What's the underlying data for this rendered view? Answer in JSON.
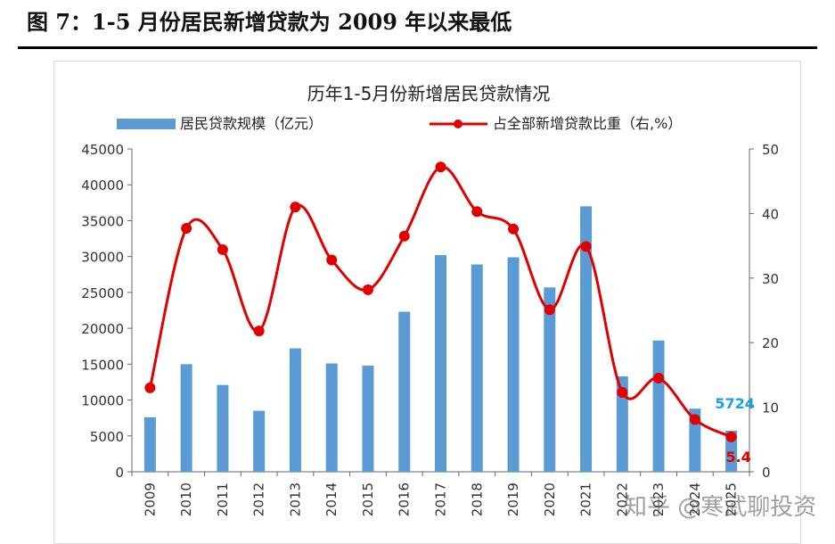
{
  "figure_title": "图 7：1-5 月份居民新增贷款为 2009 年以来最低",
  "watermark": "知乎 @寒武聊投资",
  "chart_data": {
    "type": "bar",
    "title": "历年1-5月份新增居民贷款情况",
    "categories": [
      "2009",
      "2010",
      "2011",
      "2012",
      "2013",
      "2014",
      "2015",
      "2016",
      "2017",
      "2018",
      "2019",
      "2020",
      "2021",
      "2022",
      "2023",
      "2024",
      "2025"
    ],
    "series": [
      {
        "name": "居民贷款规模（亿元）",
        "type": "bar",
        "axis": "left",
        "color": "#5b9bd5",
        "values": [
          7600,
          15000,
          12100,
          8500,
          17200,
          15100,
          14800,
          22300,
          30200,
          28900,
          29900,
          25700,
          37000,
          13300,
          18300,
          8800,
          5724
        ]
      },
      {
        "name": "占全部新增贷款比重（右,%）",
        "type": "line",
        "axis": "right",
        "color": "#e00000",
        "values": [
          13,
          37.7,
          34.4,
          21.8,
          41,
          32.8,
          28.2,
          36.5,
          47.2,
          40.3,
          37.6,
          25.1,
          34.9,
          12.3,
          14.5,
          8.1,
          5.4
        ]
      }
    ],
    "y_left": {
      "min": 0,
      "max": 45000,
      "ticks": [
        0,
        5000,
        10000,
        15000,
        20000,
        25000,
        30000,
        35000,
        40000,
        45000
      ]
    },
    "y_right": {
      "min": 0,
      "max": 50,
      "ticks": [
        0,
        10,
        20,
        30,
        40,
        50
      ]
    },
    "annotations": [
      {
        "text": "5724",
        "color": "#1ea0e6"
      },
      {
        "text": "5.4",
        "color": "#e00000"
      }
    ],
    "legend_position": "top",
    "grid": false
  }
}
